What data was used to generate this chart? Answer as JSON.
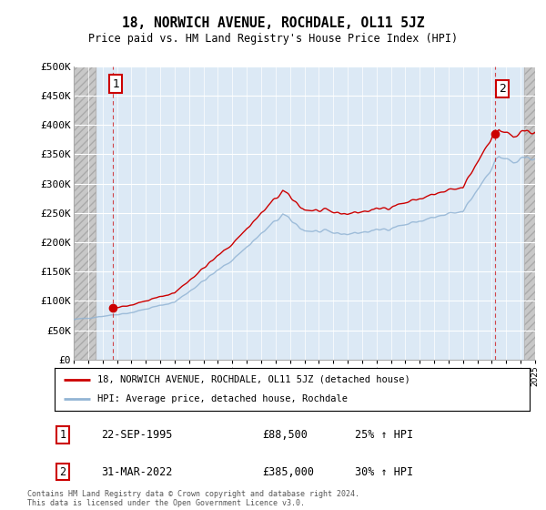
{
  "title": "18, NORWICH AVENUE, ROCHDALE, OL11 5JZ",
  "subtitle": "Price paid vs. HM Land Registry's House Price Index (HPI)",
  "ylim": [
    0,
    500000
  ],
  "yticks": [
    0,
    50000,
    100000,
    150000,
    200000,
    250000,
    300000,
    350000,
    400000,
    450000,
    500000
  ],
  "ytick_labels": [
    "£0",
    "£50K",
    "£100K",
    "£150K",
    "£200K",
    "£250K",
    "£300K",
    "£350K",
    "£400K",
    "£450K",
    "£500K"
  ],
  "hpi_color": "#92b4d4",
  "price_color": "#cc0000",
  "marker_color": "#cc0000",
  "bg_color": "#dce9f5",
  "hatch_bg_color": "#c8c8c8",
  "hatch_edge_color": "#aaaaaa",
  "grid_color": "#ffffff",
  "legend_label_price": "18, NORWICH AVENUE, ROCHDALE, OL11 5JZ (detached house)",
  "legend_label_hpi": "HPI: Average price, detached house, Rochdale",
  "sale1_date": "22-SEP-1995",
  "sale1_price": "£88,500",
  "sale1_hpi": "25% ↑ HPI",
  "sale1_year": 1995.72,
  "sale1_value": 88500,
  "sale2_date": "31-MAR-2022",
  "sale2_price": "£385,000",
  "sale2_hpi": "30% ↑ HPI",
  "sale2_year": 2022.25,
  "sale2_value": 385000,
  "footer": "Contains HM Land Registry data © Crown copyright and database right 2024.\nThis data is licensed under the Open Government Licence v3.0.",
  "xmin": 1993.0,
  "xmax": 2025.0,
  "hatch_left_end": 1994.5,
  "hatch_right_start": 2024.25
}
